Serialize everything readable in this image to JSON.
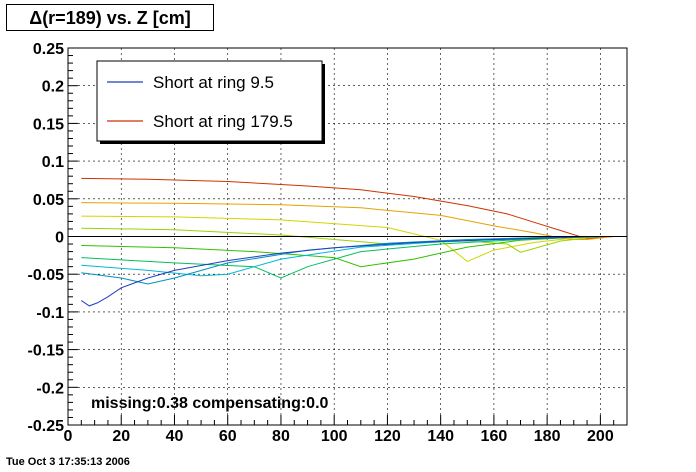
{
  "title": "Δ(r=189) vs. Z [cm]",
  "footer": "Tue Oct  3 17:35:13 2006",
  "annotation": "missing:0.38 compensating:0.0",
  "chart_data": {
    "type": "line",
    "title": "Δ(r=189) vs. Z [cm]",
    "xlabel": "",
    "ylabel": "",
    "xlim": [
      0,
      210
    ],
    "ylim": [
      -0.25,
      0.25
    ],
    "x_ticks": [
      "0",
      "20",
      "40",
      "60",
      "80",
      "100",
      "120",
      "140",
      "160",
      "180",
      "200"
    ],
    "y_ticks": [
      "-0.25",
      "-0.2",
      "-0.15",
      "-0.1",
      "-0.05",
      "0",
      "0.05",
      "0.1",
      "0.15",
      "0.2",
      "0.25"
    ],
    "grid": true,
    "legend_position": "top-left",
    "legend": [
      {
        "name": "Short at ring   9.5",
        "color": "#1f3fbf"
      },
      {
        "name": "Short at ring 179.5",
        "color": "#cc3300"
      }
    ],
    "series": [
      {
        "color": "#cc3300",
        "x": [
          5,
          30,
          60,
          90,
          110,
          130,
          150,
          165,
          175,
          185,
          195,
          205,
          210
        ],
        "y": [
          0.077,
          0.076,
          0.073,
          0.067,
          0.062,
          0.053,
          0.041,
          0.03,
          0.019,
          0.008,
          -0.003,
          0.0,
          0.0
        ]
      },
      {
        "color": "#e8a100",
        "x": [
          5,
          40,
          80,
          110,
          140,
          160,
          175,
          185,
          190,
          195,
          205,
          210
        ],
        "y": [
          0.045,
          0.044,
          0.042,
          0.038,
          0.028,
          0.014,
          0.005,
          -0.002,
          -0.004,
          -0.004,
          0.0,
          0.0
        ]
      },
      {
        "color": "#d4d400",
        "x": [
          5,
          40,
          80,
          120,
          140,
          150,
          160,
          175,
          190,
          200,
          210
        ],
        "y": [
          0.027,
          0.026,
          0.022,
          0.012,
          -0.005,
          -0.033,
          -0.018,
          -0.008,
          -0.002,
          0.0,
          0.0
        ]
      },
      {
        "color": "#99d400",
        "x": [
          5,
          40,
          80,
          120,
          150,
          165,
          170,
          185,
          200,
          210
        ],
        "y": [
          0.011,
          0.009,
          0.002,
          -0.01,
          -0.006,
          -0.01,
          -0.021,
          -0.006,
          0.0,
          0.0
        ]
      },
      {
        "color": "#33c000",
        "x": [
          5,
          40,
          70,
          100,
          110,
          130,
          150,
          170,
          190,
          200,
          210
        ],
        "y": [
          -0.012,
          -0.015,
          -0.02,
          -0.028,
          -0.04,
          -0.03,
          -0.014,
          -0.005,
          -0.001,
          0.0,
          0.0
        ]
      },
      {
        "color": "#00c060",
        "x": [
          5,
          40,
          70,
          80,
          90,
          110,
          140,
          170,
          190,
          200,
          210
        ],
        "y": [
          -0.028,
          -0.035,
          -0.04,
          -0.055,
          -0.04,
          -0.02,
          -0.01,
          -0.004,
          -0.001,
          0.0,
          0.0
        ]
      },
      {
        "color": "#00b8d8",
        "x": [
          5,
          30,
          50,
          60,
          80,
          110,
          140,
          170,
          190,
          200,
          210
        ],
        "y": [
          -0.038,
          -0.045,
          -0.052,
          -0.05,
          -0.03,
          -0.014,
          -0.007,
          -0.003,
          -0.001,
          0.0,
          0.0
        ]
      },
      {
        "color": "#0090c0",
        "x": [
          5,
          20,
          30,
          40,
          60,
          90,
          120,
          150,
          180,
          200,
          210
        ],
        "y": [
          -0.048,
          -0.055,
          -0.063,
          -0.055,
          -0.035,
          -0.018,
          -0.009,
          -0.004,
          -0.001,
          0.0,
          0.0
        ]
      },
      {
        "color": "#1f3fbf",
        "x": [
          5,
          8,
          11,
          15,
          20,
          30,
          40,
          60,
          80,
          100,
          130,
          160,
          190,
          200,
          210
        ],
        "y": [
          -0.085,
          -0.092,
          -0.088,
          -0.08,
          -0.068,
          -0.055,
          -0.045,
          -0.032,
          -0.022,
          -0.015,
          -0.008,
          -0.004,
          -0.001,
          0.0,
          0.0
        ]
      },
      {
        "color": "#000000",
        "x": [
          0,
          210
        ],
        "y": [
          0.0,
          0.0
        ]
      }
    ]
  }
}
